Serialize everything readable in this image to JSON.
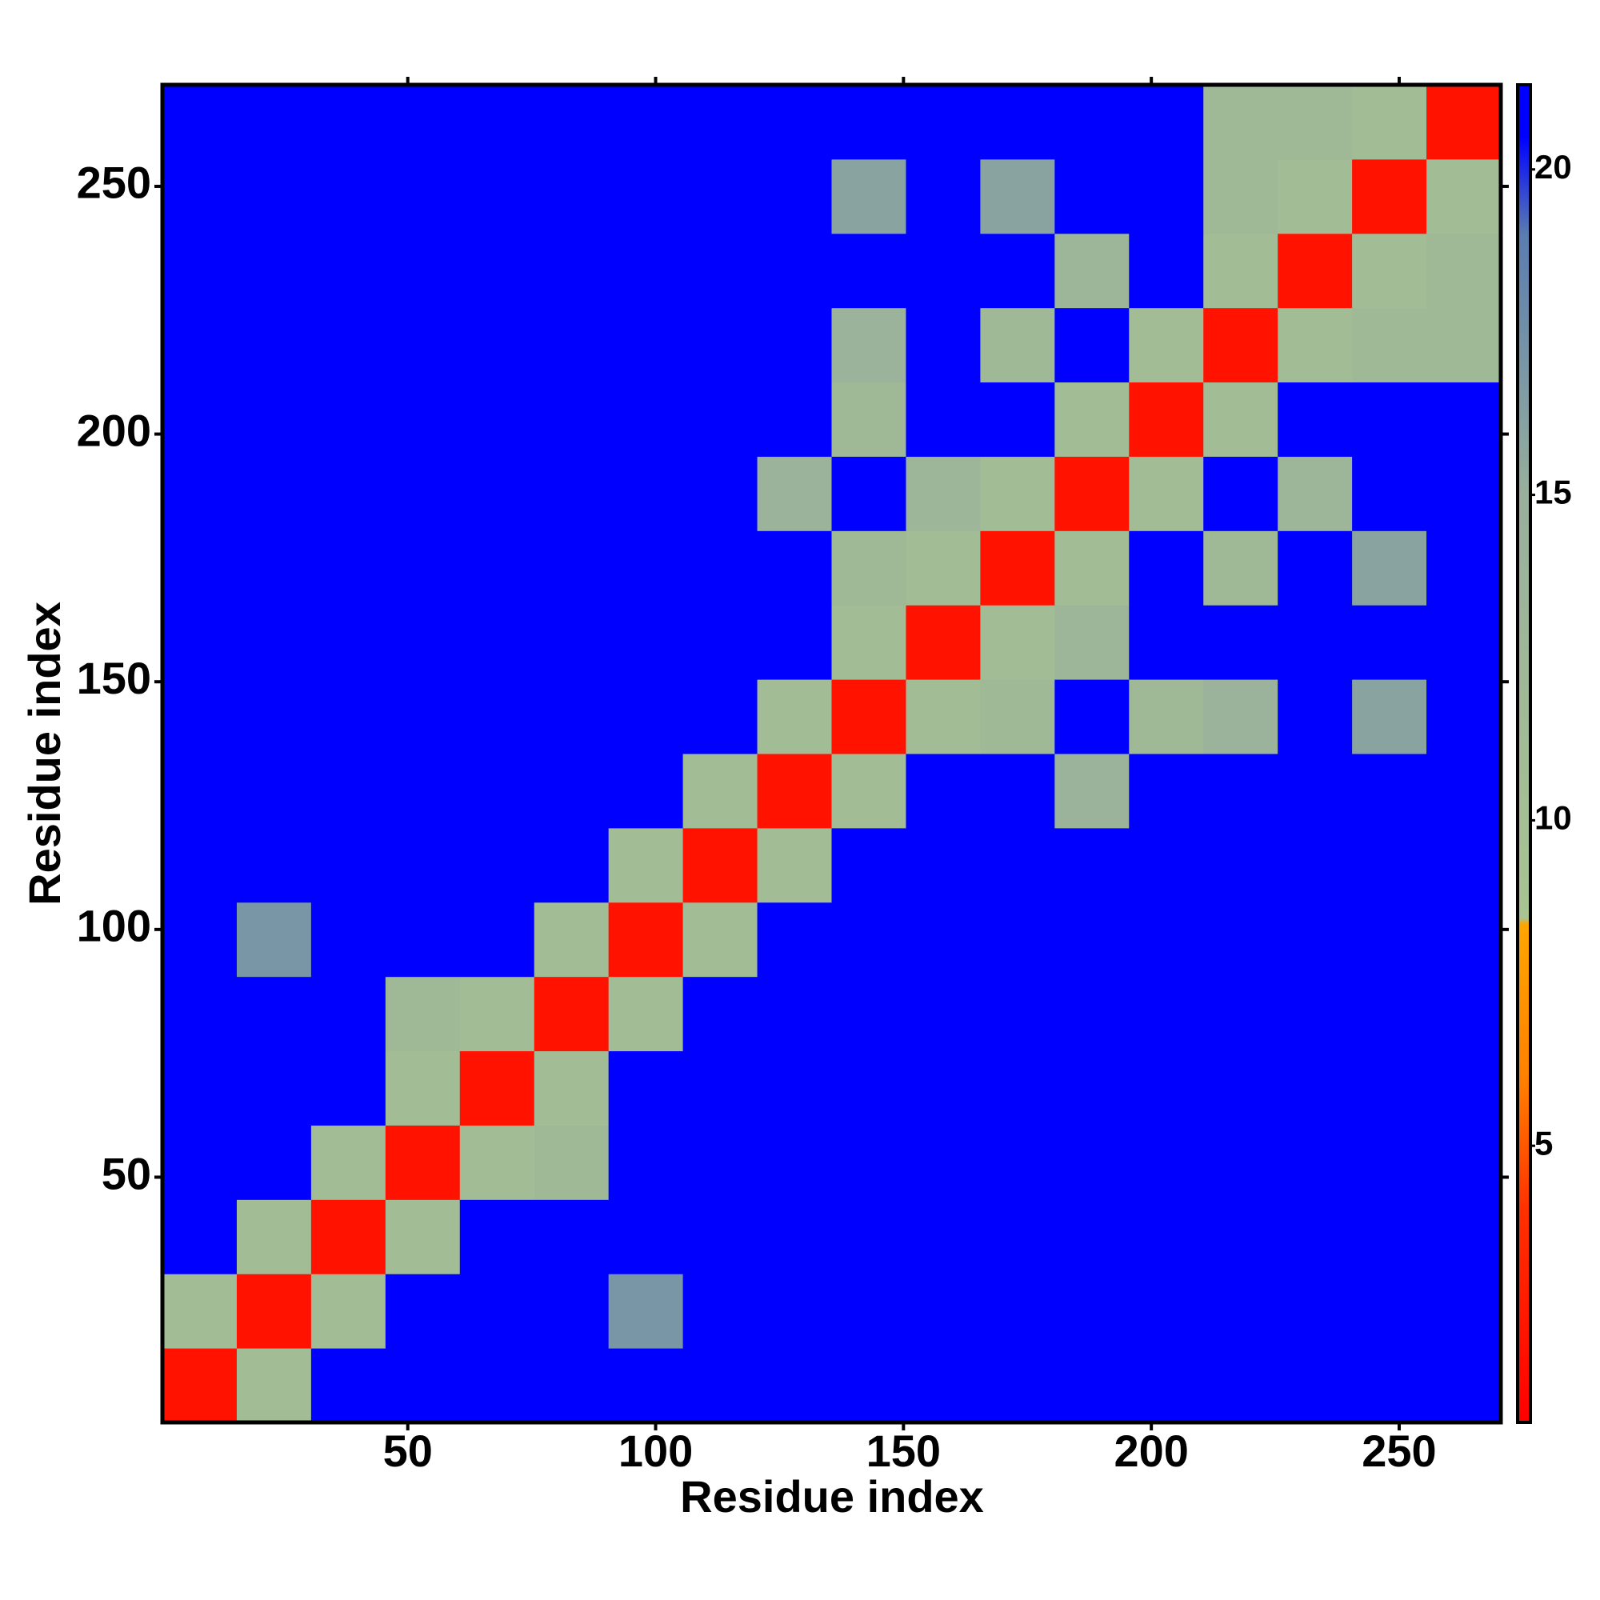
{
  "chart_data": {
    "type": "heatmap",
    "x_label": "Residue index",
    "y_label": "Residue index",
    "x_edges": [
      0.5,
      15.5,
      30.5,
      45.5,
      60.5,
      75.5,
      90.5,
      105.5,
      120.5,
      135.5,
      150.5,
      165.5,
      180.5,
      195.5,
      210.5,
      225.5,
      240.5,
      255.5,
      270.5
    ],
    "y_edges": [
      0.5,
      15.5,
      30.5,
      45.5,
      60.5,
      75.5,
      90.5,
      105.5,
      120.5,
      135.5,
      150.5,
      165.5,
      180.5,
      195.5,
      210.5,
      225.5,
      240.5,
      255.5,
      270.5
    ],
    "z": [
      [
        2,
        11,
        21,
        21,
        21,
        21,
        21,
        21,
        21,
        21,
        21,
        21,
        21,
        21,
        21,
        21,
        21,
        21
      ],
      [
        11,
        2,
        11,
        21,
        21,
        21,
        17,
        21,
        21,
        21,
        21,
        21,
        21,
        21,
        21,
        21,
        21,
        21
      ],
      [
        21,
        11,
        2,
        11,
        21,
        21,
        21,
        21,
        21,
        21,
        21,
        21,
        21,
        21,
        21,
        21,
        21,
        21
      ],
      [
        21,
        21,
        11,
        2,
        11,
        12,
        21,
        21,
        21,
        21,
        21,
        21,
        21,
        21,
        21,
        21,
        21,
        21
      ],
      [
        21,
        21,
        21,
        11,
        2,
        11,
        21,
        21,
        21,
        21,
        21,
        21,
        21,
        21,
        21,
        21,
        21,
        21
      ],
      [
        21,
        21,
        21,
        12,
        11,
        2,
        11,
        21,
        21,
        21,
        21,
        21,
        21,
        21,
        21,
        21,
        21,
        21
      ],
      [
        21,
        17,
        21,
        21,
        21,
        11,
        2,
        11,
        21,
        21,
        21,
        21,
        21,
        21,
        21,
        21,
        21,
        21
      ],
      [
        21,
        21,
        21,
        21,
        21,
        21,
        11,
        2,
        11,
        21,
        21,
        21,
        21,
        21,
        21,
        21,
        21,
        21
      ],
      [
        21,
        21,
        21,
        21,
        21,
        21,
        21,
        11,
        2,
        11,
        21,
        21,
        14,
        21,
        21,
        21,
        21,
        21
      ],
      [
        21,
        21,
        21,
        21,
        21,
        21,
        21,
        21,
        11,
        2,
        11,
        12,
        21,
        12,
        14,
        21,
        16,
        21
      ],
      [
        21,
        21,
        21,
        21,
        21,
        21,
        21,
        21,
        21,
        11,
        2,
        11,
        13,
        21,
        21,
        21,
        21,
        21
      ],
      [
        21,
        21,
        21,
        21,
        21,
        21,
        21,
        21,
        21,
        12,
        11,
        2,
        11,
        21,
        12,
        21,
        16,
        21
      ],
      [
        21,
        21,
        21,
        21,
        21,
        21,
        21,
        21,
        14,
        21,
        13,
        11,
        2,
        11,
        21,
        13,
        21,
        21
      ],
      [
        21,
        21,
        21,
        21,
        21,
        21,
        21,
        21,
        21,
        12,
        21,
        21,
        11,
        2,
        11,
        21,
        21,
        21
      ],
      [
        21,
        21,
        21,
        21,
        21,
        21,
        21,
        21,
        21,
        14,
        21,
        12,
        21,
        11,
        2,
        11,
        12,
        12
      ],
      [
        21,
        21,
        21,
        21,
        21,
        21,
        21,
        21,
        21,
        21,
        21,
        21,
        13,
        21,
        11,
        2,
        11,
        12
      ],
      [
        21,
        21,
        21,
        21,
        21,
        21,
        21,
        21,
        21,
        16,
        21,
        16,
        21,
        21,
        12,
        11,
        2,
        11
      ],
      [
        21,
        21,
        21,
        21,
        21,
        21,
        21,
        21,
        21,
        21,
        21,
        21,
        21,
        21,
        12,
        12,
        11,
        2
      ]
    ],
    "xlim": [
      0.5,
      270.5
    ],
    "ylim": [
      0.5,
      270.5
    ],
    "xticks": [
      50,
      100,
      150,
      200,
      250
    ],
    "yticks": [
      50,
      100,
      150,
      200,
      250
    ],
    "zlim": [
      0.75,
      21.3
    ],
    "zticks": [
      5,
      10,
      15,
      20
    ],
    "colorscale": [
      [
        0.75,
        "#ff0000"
      ],
      [
        4,
        "#ff3000"
      ],
      [
        6,
        "#ff8000"
      ],
      [
        8.4,
        "#ffa500"
      ],
      [
        8.5,
        "#a8c492"
      ],
      [
        15,
        "#98b09c"
      ],
      [
        19,
        "#5a7cb0"
      ],
      [
        20.5,
        "#0000ff"
      ]
    ]
  }
}
